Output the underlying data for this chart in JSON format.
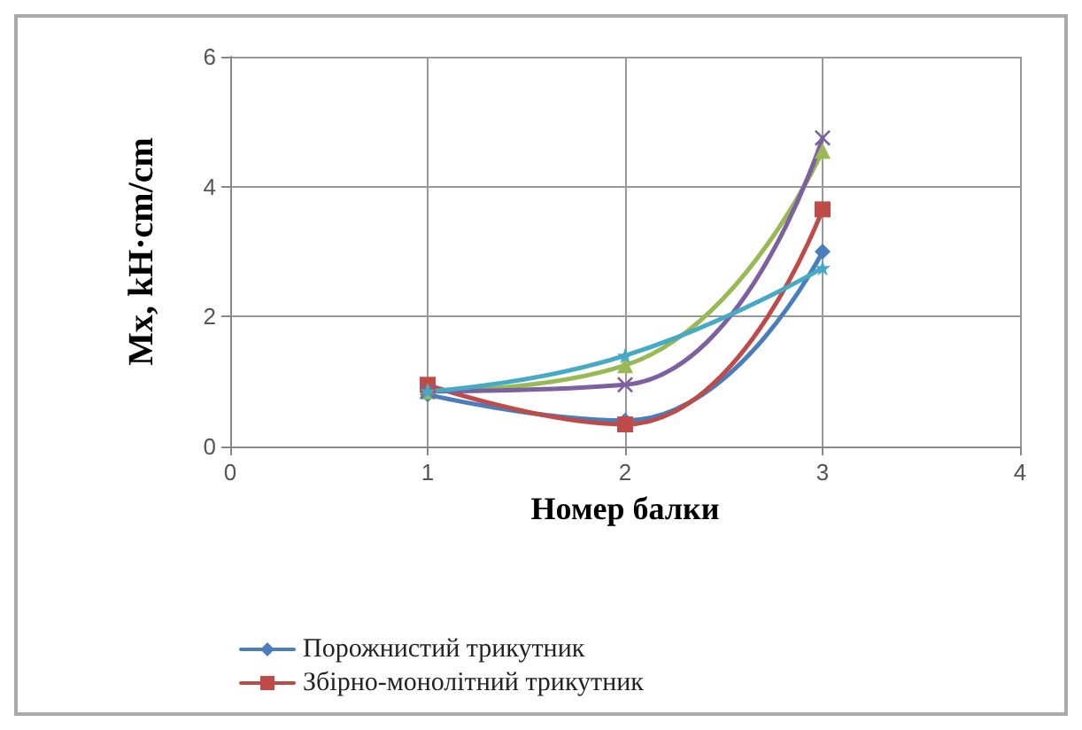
{
  "chart_data": {
    "type": "line",
    "xlabel": "Номер балки",
    "ylabel": "Mx, kH·cm/cm",
    "x": [
      1,
      2,
      3
    ],
    "xlim": [
      0,
      4
    ],
    "xticks": [
      0,
      1,
      2,
      3,
      4
    ],
    "ylim": [
      0,
      6
    ],
    "yticks": [
      0,
      2,
      4,
      6
    ],
    "grid": true,
    "legend": "bottom",
    "series": [
      {
        "name": "Порожнистий трикутник",
        "color": "#4a7ebb",
        "marker": "diamond",
        "values": [
          0.8,
          0.4,
          3.0
        ]
      },
      {
        "name": "Збірно-монолітний трикутник",
        "color": "#be4b48",
        "marker": "square",
        "values": [
          0.95,
          0.34,
          3.65
        ]
      },
      {
        "color": "#98b954",
        "marker": "triangle",
        "values": [
          0.85,
          1.25,
          4.55
        ]
      },
      {
        "color": "#7d60a0",
        "marker": "cross",
        "values": [
          0.85,
          0.95,
          4.75
        ]
      },
      {
        "color": "#46aac5",
        "marker": "star",
        "values": [
          0.85,
          1.4,
          2.75
        ]
      }
    ]
  }
}
